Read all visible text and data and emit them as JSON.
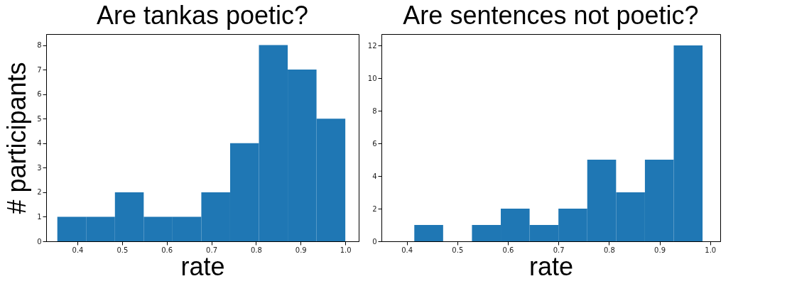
{
  "chart_data": [
    {
      "type": "histogram",
      "title": "Are tankas poetic?",
      "xlabel": "rate",
      "ylabel": "# participants",
      "color": "#1f77b4",
      "bins": [
        0.355,
        0.4195,
        0.484,
        0.5485,
        0.613,
        0.6775,
        0.742,
        0.8065,
        0.871,
        0.9355,
        1.0
      ],
      "values": [
        1,
        1,
        2,
        1,
        1,
        2,
        4,
        8,
        7,
        5
      ],
      "xlim": [
        0.33,
        1.03
      ],
      "xticks": [
        0.4,
        0.5,
        0.6,
        0.7,
        0.8,
        0.9,
        {
          "value": 1,
          "label": "1.0"
        }
      ],
      "ylim": [
        0,
        8.45
      ],
      "yticks": [
        0,
        1,
        2,
        3,
        4,
        5,
        6,
        7,
        8
      ],
      "grid": false
    },
    {
      "type": "histogram",
      "title": "Are sentences not poetic?",
      "xlabel": "rate",
      "color": "#1f77b4",
      "bins": [
        0.415,
        0.472,
        0.529,
        0.586,
        0.643,
        0.7,
        0.757,
        0.814,
        0.871,
        0.928,
        0.985
      ],
      "values": [
        1,
        0,
        1,
        2,
        1,
        2,
        5,
        3,
        5,
        12
      ],
      "xlim": [
        0.35,
        1.02
      ],
      "xticks": [
        0.4,
        0.5,
        0.6,
        0.7,
        0.8,
        0.9,
        {
          "value": 1,
          "label": "1.0"
        }
      ],
      "ylim": [
        0,
        12.7
      ],
      "yticks": [
        0,
        2,
        4,
        6,
        8,
        10,
        12
      ],
      "grid": false
    }
  ]
}
